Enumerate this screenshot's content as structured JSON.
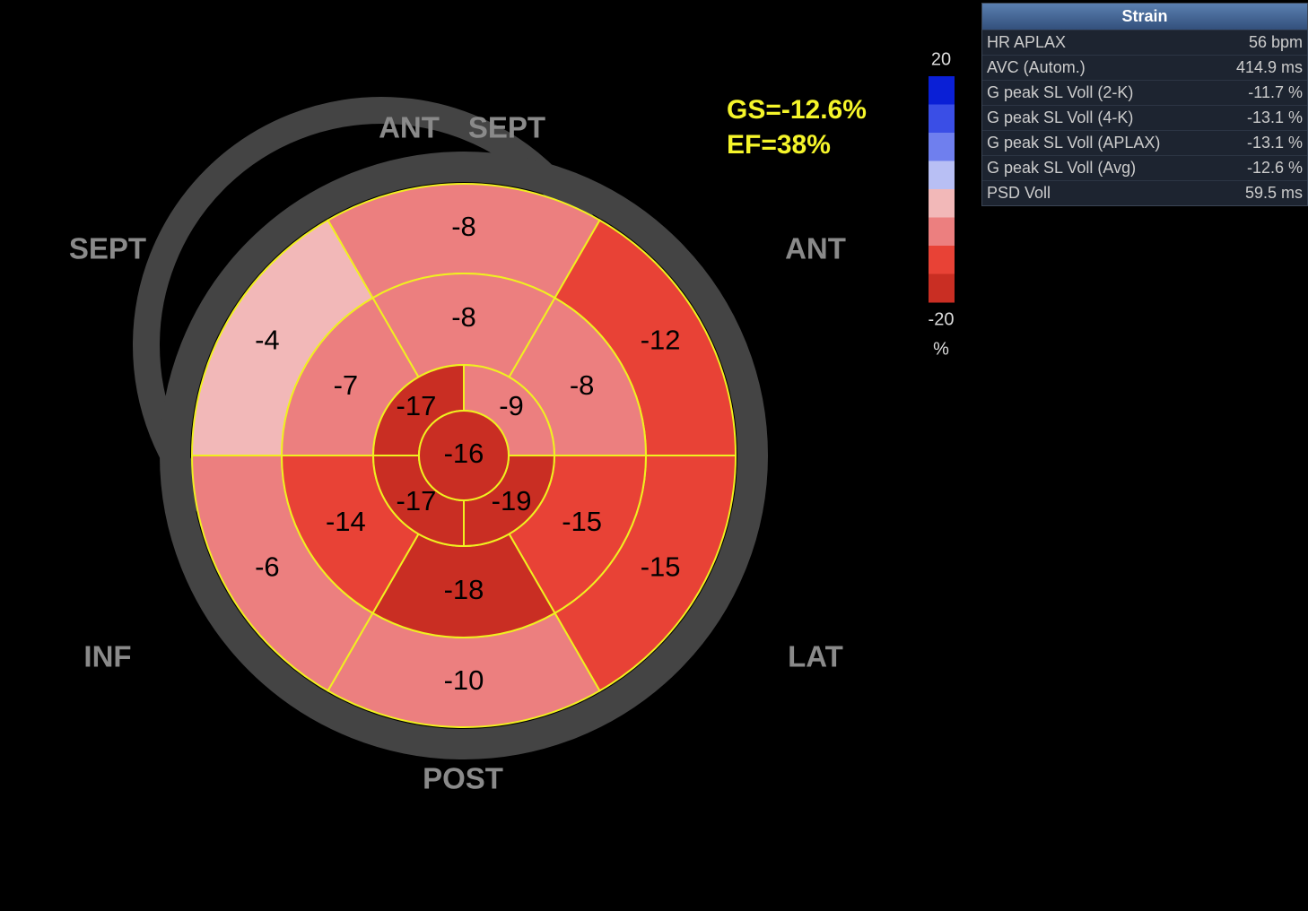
{
  "bullseye": {
    "orientation_labels": [
      "ANT",
      "SEPT",
      "SEPT",
      "ANT",
      "INF",
      "LAT",
      "POST"
    ],
    "basal": [
      -8,
      -12,
      -15,
      -10,
      -6,
      -4
    ],
    "mid": [
      -8,
      -8,
      -15,
      -18,
      -14,
      -7
    ],
    "apical": [
      -17,
      -9,
      -19,
      -17
    ],
    "apex": -16,
    "global": [
      "GS=-12.6%",
      "EF=38%"
    ]
  },
  "legend": {
    "max": "20",
    "min": "-20",
    "unit": "%",
    "colors": [
      "#0a1fd6",
      "#3a4ee6",
      "#6f7fee",
      "#b8bff4",
      "#f2b8b8",
      "#ec7f7f",
      "#e84236",
      "#c92e23"
    ]
  },
  "table": {
    "title": "Strain",
    "rows": [
      [
        "HR APLAX",
        "56 bpm"
      ],
      [
        "AVC (Autom.)",
        "414.9 ms"
      ],
      [
        "G peak SL Voll (2-K)",
        "-11.7 %"
      ],
      [
        "G peak SL Voll (4-K)",
        "-13.1 %"
      ],
      [
        "G peak SL Voll (APLAX)",
        "-13.1 %"
      ],
      [
        "G peak SL Voll (Avg)",
        "-12.6 %"
      ],
      [
        "PSD Voll",
        "59.5 ms"
      ]
    ]
  }
}
